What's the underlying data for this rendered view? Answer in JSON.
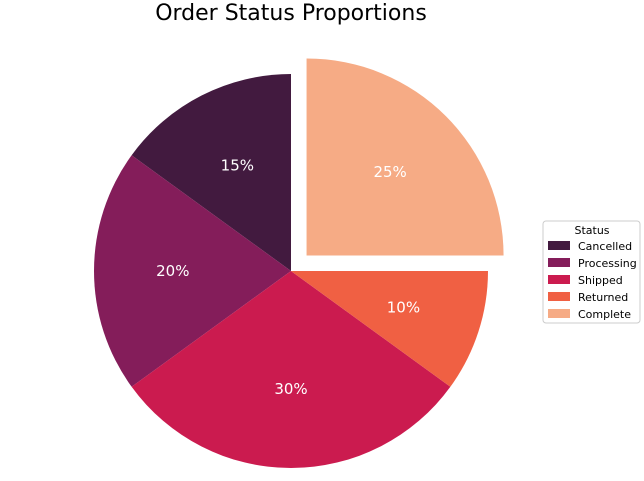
{
  "chart_data": {
    "type": "pie",
    "title": "Order Status Proportions",
    "categories": [
      "Cancelled",
      "Processing",
      "Shipped",
      "Returned",
      "Complete"
    ],
    "values": [
      15,
      20,
      30,
      10,
      25
    ],
    "value_labels": [
      "15%",
      "20%",
      "30%",
      "10%",
      "25%"
    ],
    "colors": [
      "#421a3f",
      "#841d5a",
      "#cb1b4f",
      "#f06043",
      "#f6ab85"
    ],
    "exploded": [
      "Complete"
    ],
    "start_angle_deg": 90,
    "direction": "counterclockwise",
    "legend": {
      "title": "Status",
      "placement": "right"
    }
  }
}
